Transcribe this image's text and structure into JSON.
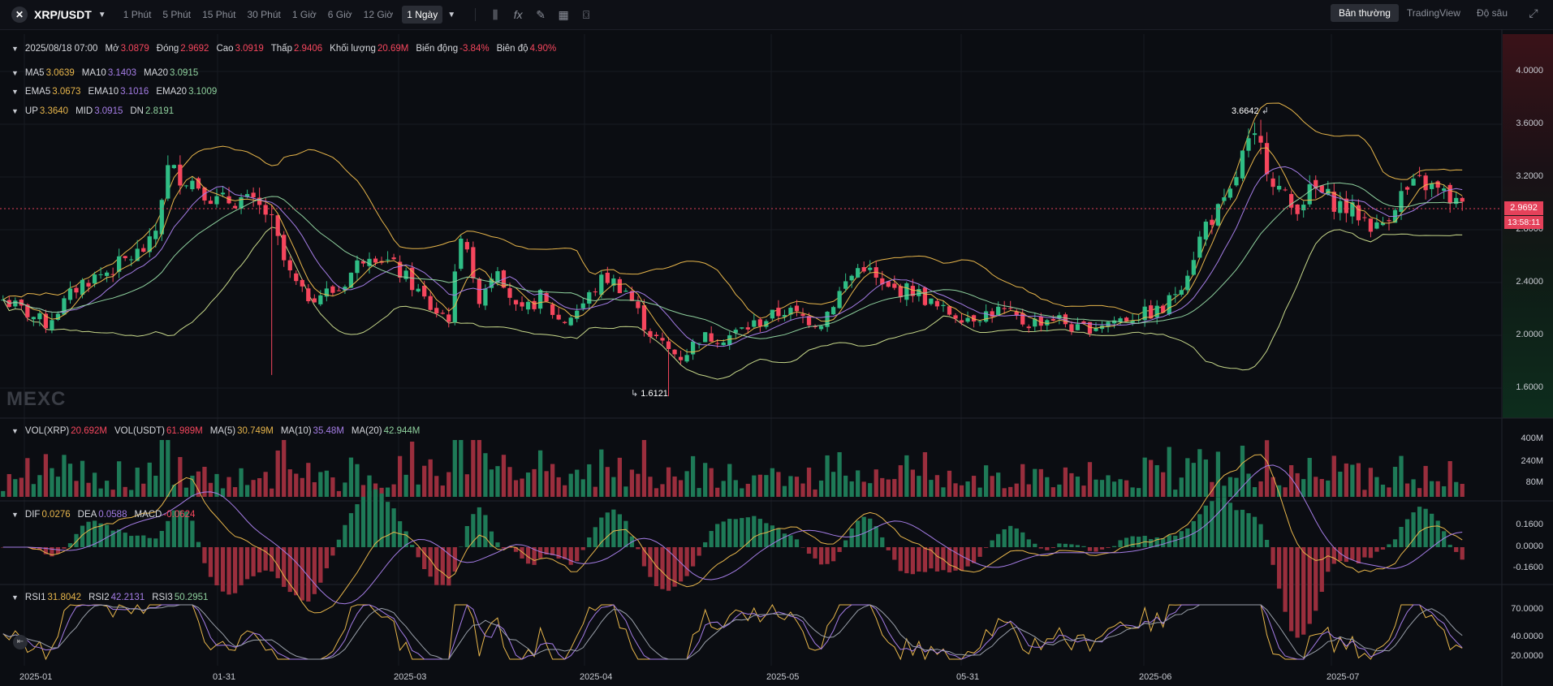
{
  "toolbar": {
    "pair": "XRP/USDT",
    "intervals": [
      "1 Phút",
      "5 Phút",
      "15 Phút",
      "30 Phút",
      "1 Giờ",
      "6 Giờ",
      "12 Giờ",
      "1 Ngày"
    ],
    "active_interval": "1 Ngày",
    "views": [
      "Bản thường",
      "TradingView",
      "Độ sâu"
    ],
    "active_view": "Bản thường"
  },
  "ohlc": {
    "date": "2025/08/18 07:00",
    "open_label": "Mở",
    "open": "3.0879",
    "close_label": "Đóng",
    "close": "2.9692",
    "high_label": "Cao",
    "high": "3.0919",
    "low_label": "Thấp",
    "low": "2.9406",
    "volume_label": "Khối lượng",
    "volume": "20.69M",
    "change_label": "Biến động",
    "change": "-3.84%",
    "amplitude_label": "Biên độ",
    "amplitude": "4.90%"
  },
  "ma": {
    "ma5_label": "MA5",
    "ma5": "3.0639",
    "ma10_label": "MA10",
    "ma10": "3.1403",
    "ma20_label": "MA20",
    "ma20": "3.0915"
  },
  "ema": {
    "ema5_label": "EMA5",
    "ema5": "3.0673",
    "ema10_label": "EMA10",
    "ema10": "3.1016",
    "ema20_label": "EMA20",
    "ema20": "3.1009"
  },
  "boll": {
    "up_label": "UP",
    "up": "3.3640",
    "mid_label": "MID",
    "mid": "3.0915",
    "dn_label": "DN",
    "dn": "2.8191"
  },
  "volume": {
    "vol_xrp_label": "VOL(XRP)",
    "vol_xrp": "20.692M",
    "vol_usdt_label": "VOL(USDT)",
    "vol_usdt": "61.989M",
    "ma5_label": "MA(5)",
    "ma5": "30.749M",
    "ma10_label": "MA(10)",
    "ma10": "35.48M",
    "ma20_label": "MA(20)",
    "ma20": "42.944M"
  },
  "macd": {
    "dif_label": "DIF",
    "dif": "0.0276",
    "dea_label": "DEA",
    "dea": "0.0588",
    "macd_label": "MACD",
    "macd": "-0.0624"
  },
  "rsi": {
    "rsi1_label": "RSI1",
    "rsi1": "31.8042",
    "rsi2_label": "RSI2",
    "rsi2": "42.2131",
    "rsi3_label": "RSI3",
    "rsi3": "50.2951"
  },
  "price_axis": [
    "4.0000",
    "3.6000",
    "3.2000",
    "2.8000",
    "2.4000",
    "2.0000",
    "1.6000"
  ],
  "volume_axis": [
    "400M",
    "240M",
    "80M"
  ],
  "macd_axis": [
    "0.1600",
    "0.0000",
    "-0.1600"
  ],
  "rsi_axis": [
    "70.0000",
    "40.0000",
    "20.0000"
  ],
  "x_axis": [
    "2025-01",
    "01-31",
    "2025-03",
    "2025-04",
    "2025-05",
    "05-31",
    "2025-06",
    "2025-07"
  ],
  "annotations": {
    "high_mark": "3.6642",
    "low_mark": "1.6121"
  },
  "current_price": {
    "price": "2.9692",
    "countdown": "13:58:11"
  },
  "watermark": "MEXC",
  "colors": {
    "up": "#2fbd85",
    "down": "#f6465d",
    "ma5": "#e8b64b",
    "ma10": "#a57de6",
    "ma20": "#8fd19e",
    "boll": "#e8b64b"
  },
  "chart_data": {
    "type": "candlestick",
    "interval": "1 Ngày",
    "x_range": [
      "2024-12-20",
      "2025-08-18"
    ],
    "price_range": [
      1.45,
      4.3
    ],
    "key_points": [
      {
        "date": "2025-01-16",
        "close": 3.3
      },
      {
        "date": "2025-01-31",
        "close": 3.05
      },
      {
        "date": "2025-02-03",
        "low": 1.77
      },
      {
        "date": "2025-03-02",
        "close": 2.95
      },
      {
        "date": "2025-04-07",
        "low": 1.6121
      },
      {
        "date": "2025-05-12",
        "close": 2.6
      },
      {
        "date": "2025-06-22",
        "close": 1.95
      },
      {
        "date": "2025-07-18",
        "high": 3.6642
      },
      {
        "date": "2025-08-18",
        "open": 3.0879,
        "high": 3.0919,
        "low": 2.9406,
        "close": 2.9692
      }
    ]
  }
}
